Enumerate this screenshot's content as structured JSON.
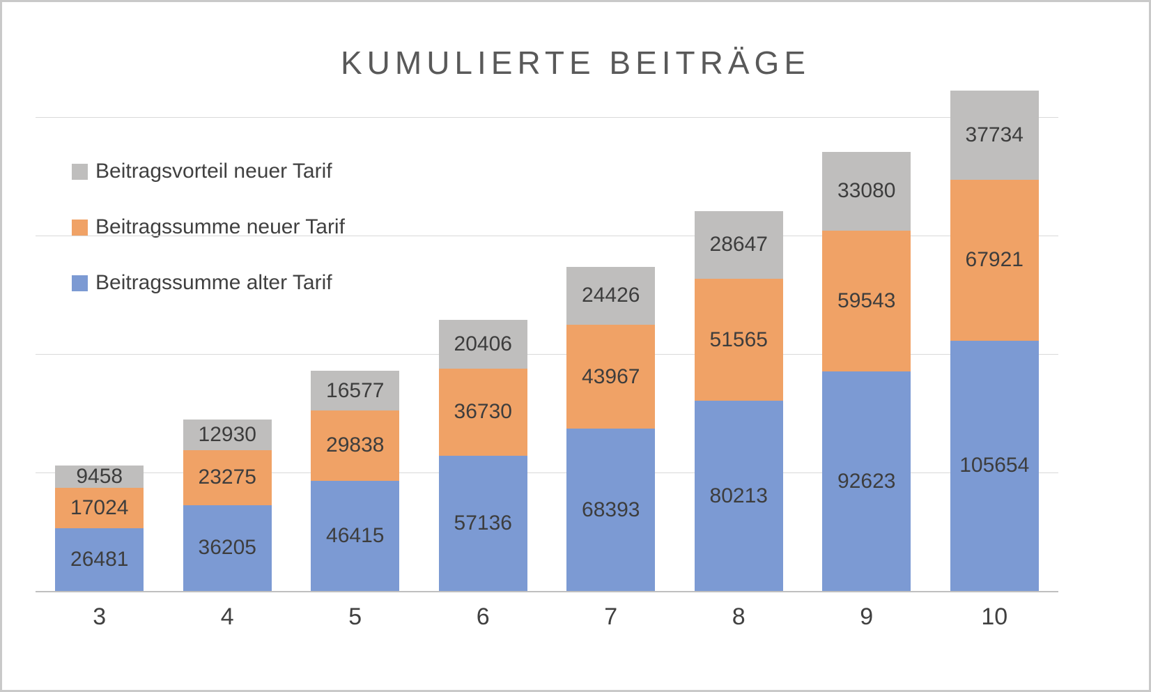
{
  "chart_data": {
    "type": "bar",
    "stacked": true,
    "title": "KUMULIERTE BEITRÄGE",
    "xlabel": "",
    "ylabel": "",
    "categories": [
      "3",
      "4",
      "5",
      "6",
      "7",
      "8",
      "9",
      "10"
    ],
    "series": [
      {
        "name": "Beitragssumme alter Tarif",
        "color": "#7c9ad3",
        "values": [
          26481,
          36205,
          46415,
          57136,
          68393,
          80213,
          92623,
          105654
        ]
      },
      {
        "name": "Beitragssumme neuer Tarif",
        "color": "#f0a266",
        "values": [
          17024,
          23275,
          29838,
          36730,
          43967,
          51565,
          59543,
          67921
        ]
      },
      {
        "name": "Beitragsvorteil neuer Tarif",
        "color": "#bfbebd",
        "values": [
          9458,
          12930,
          16577,
          20406,
          24426,
          28647,
          33080,
          37734
        ]
      }
    ],
    "legend": [
      "Beitragsvorteil neuer Tarif",
      "Beitragssumme neuer Tarif",
      "Beitragssumme alter Tarif"
    ],
    "legend_position": "upper-left",
    "grid": true,
    "ylim": [
      0,
      250000
    ],
    "gridline_step": 50000,
    "data_labels": true,
    "label_color": "#3d3d3d",
    "title_color": "#595959"
  }
}
